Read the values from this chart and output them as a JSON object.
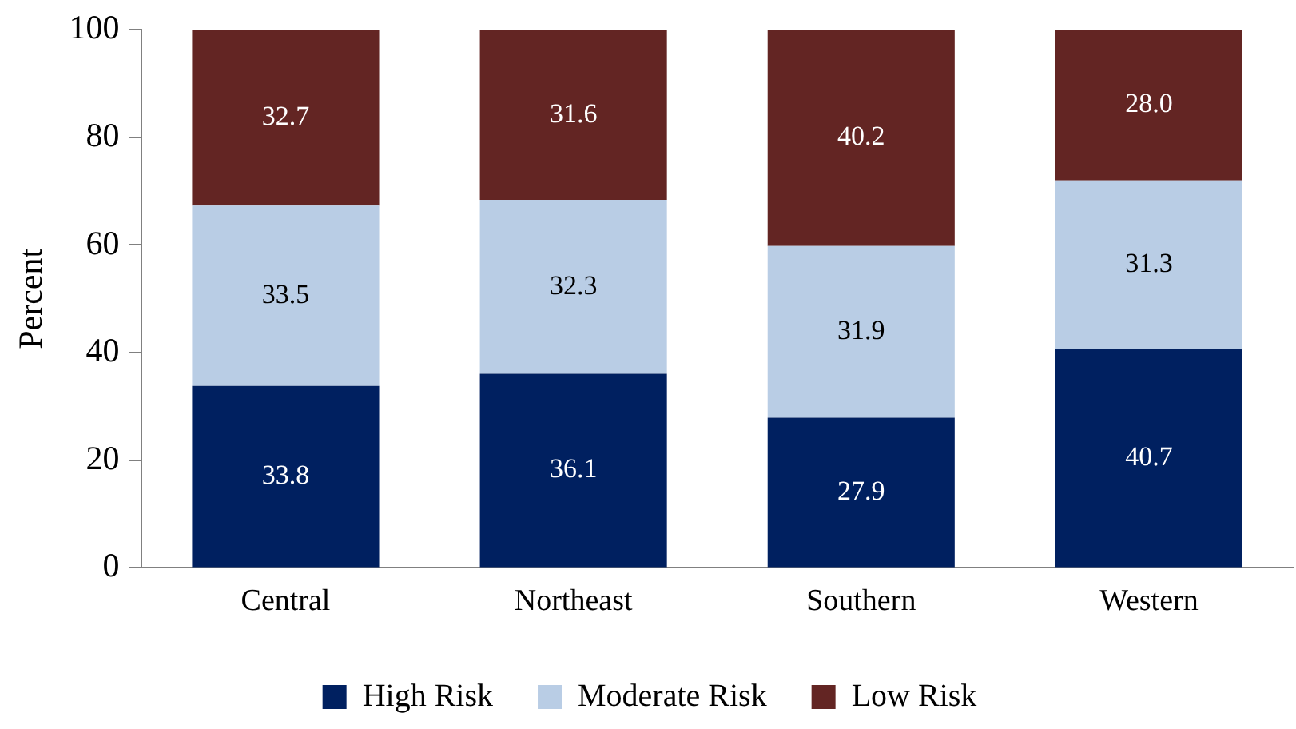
{
  "chart_data": {
    "type": "bar",
    "stacked": true,
    "ylabel": "Percent",
    "categories": [
      "Central",
      "Northeast",
      "Southern",
      "Western"
    ],
    "series": [
      {
        "name": "High Risk",
        "color": "#002060",
        "values": [
          33.8,
          36.1,
          27.9,
          40.7
        ],
        "value_labels": [
          "33.8",
          "36.1",
          "27.9",
          "40.7"
        ]
      },
      {
        "name": "Moderate Risk",
        "color": "#b9cde5",
        "values": [
          33.5,
          32.3,
          31.9,
          31.3
        ],
        "value_labels": [
          "33.5",
          "32.3",
          "31.9",
          "31.3"
        ]
      },
      {
        "name": "Low Risk",
        "color": "#632523",
        "values": [
          32.7,
          31.6,
          40.2,
          28.0
        ],
        "value_labels": [
          "32.7",
          "31.6",
          "40.2",
          "28.0"
        ]
      }
    ],
    "ylim": [
      0,
      100
    ],
    "yticks": [
      0,
      20,
      40,
      60,
      80,
      100
    ],
    "grid": false,
    "legend": "bottom"
  }
}
